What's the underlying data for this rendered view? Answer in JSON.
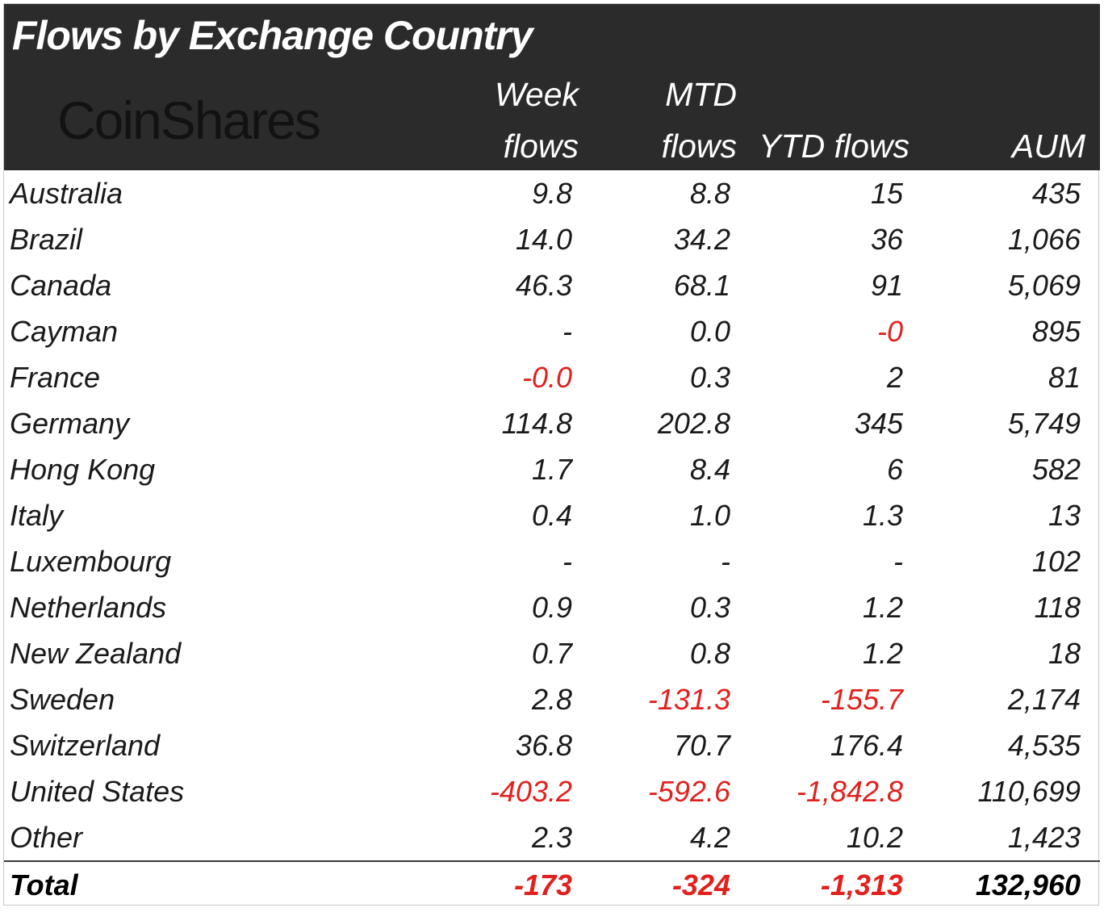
{
  "title": "Flows by Exchange Country",
  "logo": "CoinShares",
  "columns": {
    "week": [
      "Week",
      "flows"
    ],
    "mtd": [
      "MTD",
      "flows"
    ],
    "ytd": "YTD flows",
    "aum": "AUM"
  },
  "colors": {
    "header_bg": "#2b2b2b",
    "negative": "#e0211d",
    "text": "#1a1a1a"
  },
  "rows": [
    {
      "country": "Australia",
      "week": "9.8",
      "mtd": "8.8",
      "ytd": "15",
      "aum": "435"
    },
    {
      "country": "Brazil",
      "week": "14.0",
      "mtd": "34.2",
      "ytd": "36",
      "aum": "1,066"
    },
    {
      "country": "Canada",
      "week": "46.3",
      "mtd": "68.1",
      "ytd": "91",
      "aum": "5,069"
    },
    {
      "country": "Cayman",
      "week": "-",
      "mtd": "0.0",
      "ytd": "-0",
      "aum": "895"
    },
    {
      "country": "France",
      "week": "-0.0",
      "mtd": "0.3",
      "ytd": "2",
      "aum": "81"
    },
    {
      "country": "Germany",
      "week": "114.8",
      "mtd": "202.8",
      "ytd": "345",
      "aum": "5,749"
    },
    {
      "country": "Hong Kong",
      "week": "1.7",
      "mtd": "8.4",
      "ytd": "6",
      "aum": "582"
    },
    {
      "country": "Italy",
      "week": "0.4",
      "mtd": "1.0",
      "ytd": "1.3",
      "aum": "13"
    },
    {
      "country": "Luxembourg",
      "week": "-",
      "mtd": "-",
      "ytd": "-",
      "aum": "102"
    },
    {
      "country": "Netherlands",
      "week": "0.9",
      "mtd": "0.3",
      "ytd": "1.2",
      "aum": "118"
    },
    {
      "country": "New Zealand",
      "week": "0.7",
      "mtd": "0.8",
      "ytd": "1.2",
      "aum": "18"
    },
    {
      "country": "Sweden",
      "week": "2.8",
      "mtd": "-131.3",
      "ytd": "-155.7",
      "aum": "2,174"
    },
    {
      "country": "Switzerland",
      "week": "36.8",
      "mtd": "70.7",
      "ytd": "176.4",
      "aum": "4,535"
    },
    {
      "country": "United States",
      "week": "-403.2",
      "mtd": "-592.6",
      "ytd": "-1,842.8",
      "aum": "110,699"
    },
    {
      "country": "Other",
      "week": "2.3",
      "mtd": "4.2",
      "ytd": "10.2",
      "aum": "1,423"
    }
  ],
  "total": {
    "label": "Total",
    "week": "-173",
    "mtd": "-324",
    "ytd": "-1,313",
    "aum": "132,960"
  }
}
